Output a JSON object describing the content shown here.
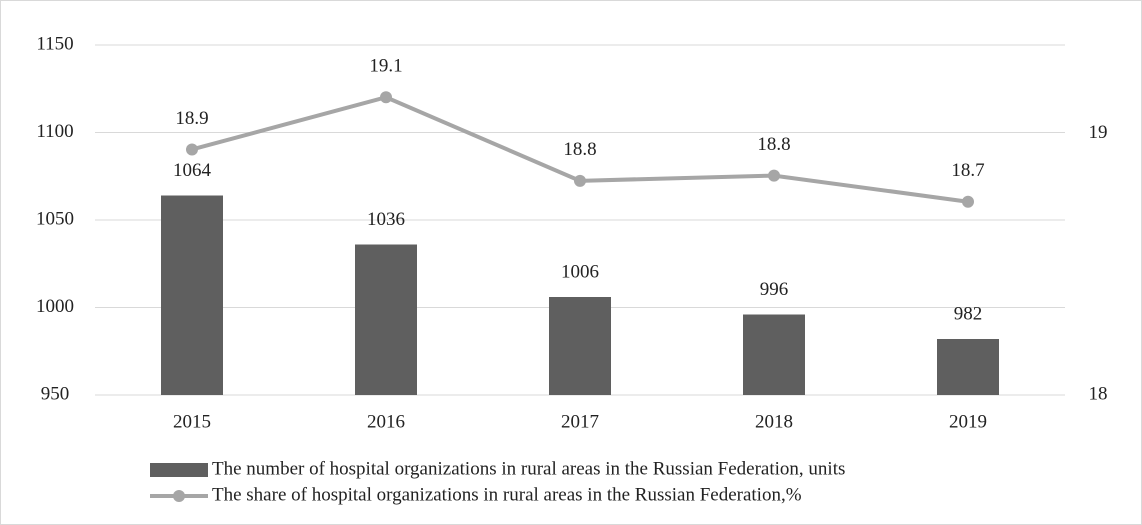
{
  "chart_data": {
    "type": "bar-line",
    "categories": [
      "2015",
      "2016",
      "2017",
      "2018",
      "2019"
    ],
    "series": [
      {
        "name": "The number of hospital organizations in rural areas in the Russian Federation, units",
        "type": "bar",
        "color": "#5f5f5f",
        "values": [
          1064,
          1036,
          1006,
          996,
          982
        ]
      },
      {
        "name": "The share of hospital organizations in rural areas in the Russian Federation,%",
        "type": "line",
        "axis": "y2",
        "color": "#a6a6a6",
        "values": [
          18.94,
          19.14,
          18.82,
          18.84,
          18.74
        ],
        "value_labels": [
          "18.9",
          "19.1",
          "18.8",
          "18.8",
          "18.7"
        ]
      }
    ],
    "ylim": [
      950,
      1150
    ],
    "yticks": [
      950,
      1000,
      1050,
      1100,
      1150
    ],
    "y2lim": [
      18,
      19.34
    ],
    "y2ticks": [
      18,
      19
    ],
    "grid": true,
    "legend": "bottom"
  }
}
